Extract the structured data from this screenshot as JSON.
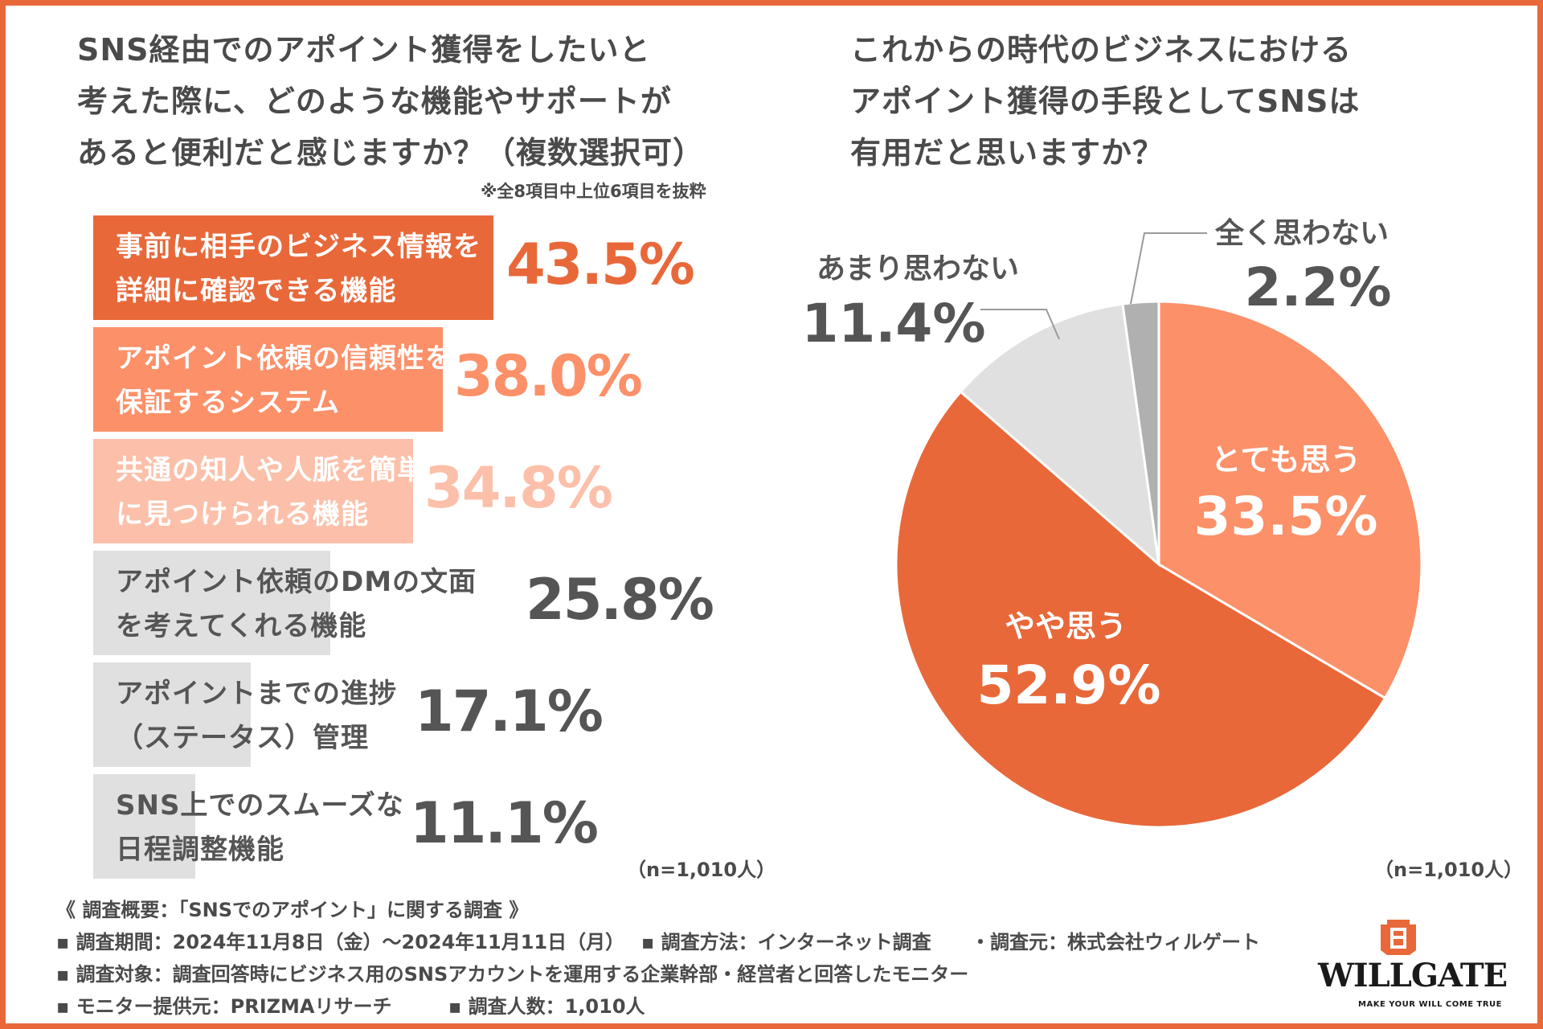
{
  "left_chart": {
    "title_lines": [
      "SNS経由でのアポイント獲得をしたいと",
      "考えた際に、どのような機能やサポートが",
      "あると便利だと感じますか？（複数選択可）"
    ],
    "note": "※全8項目中上位6項目を抜粋",
    "n_label": "（n=1,010人）"
  },
  "right_chart": {
    "title_lines": [
      "これからの時代のビジネスにおける",
      "アポイント獲得の手段としてSNSは",
      "有用だと思いますか？"
    ],
    "n_label": "（n=1,010人）"
  },
  "chart_data": [
    {
      "type": "bar",
      "orientation": "horizontal",
      "title": "SNS経由でのアポイント獲得をしたいと考えた際に、どのような機能やサポートがあると便利だと感じますか？（複数選択可）",
      "categories": [
        [
          "事前に相手のビジネス情報を",
          "詳細に確認できる機能"
        ],
        [
          "アポイント依頼の信頼性を",
          "保証するシステム"
        ],
        [
          "共通の知人や人脈を簡単",
          "に見つけられる機能"
        ],
        [
          "アポイント依頼のDMの文面",
          "を考えてくれる機能"
        ],
        [
          "アポイントまでの進捗",
          "（ステータス）管理"
        ],
        [
          "SNS上でのスムーズな",
          "日程調整機能"
        ]
      ],
      "values": [
        43.5,
        38.0,
        34.8,
        25.8,
        17.1,
        11.1
      ],
      "value_labels": [
        "43.5%",
        "38.0%",
        "34.8%",
        "25.8%",
        "17.1%",
        "11.1%"
      ],
      "unit": "%",
      "bar_colors": [
        "#e8683a",
        "#fc9069",
        "#fcc0aa",
        "#e0e0e0",
        "#e0e0e0",
        "#e0e0e0"
      ],
      "label_colors": [
        "#ffffff",
        "#ffffff",
        "#ffffff",
        "#555555",
        "#555555",
        "#555555"
      ],
      "value_colors": [
        "#e8683a",
        "#fc9069",
        "#fcc0aa",
        "#555555",
        "#555555",
        "#555555"
      ]
    },
    {
      "type": "pie",
      "title": "これからの時代のビジネスにおけるアポイント獲得の手段としてSNSは有用だと思いますか？",
      "slices": [
        {
          "label": "とても思う",
          "value": 33.5,
          "value_label": "33.5%",
          "color": "#fc9069",
          "text_color": "#ffffff"
        },
        {
          "label": "やや思う",
          "value": 52.9,
          "value_label": "52.9%",
          "color": "#e8683a",
          "text_color": "#ffffff"
        },
        {
          "label": "あまり思わない",
          "value": 11.4,
          "value_label": "11.4%",
          "color": "#e0e0e0",
          "text_color": "#555555"
        },
        {
          "label": "全く思わない",
          "value": 2.2,
          "value_label": "2.2%",
          "color": "#b0b0b0",
          "text_color": "#555555"
        }
      ]
    }
  ],
  "survey": {
    "heading": "《 調査概要：「SNSでのアポイント」に関する調査 》",
    "rows": [
      [
        "▪ 調査期間：2024年11月8日（金）〜2024年11月11日（月）",
        "▪ 調査方法：インターネット調査",
        "・調査元：株式会社ウィルゲート"
      ],
      [
        "▪ 調査対象：調査回答時にビジネス用のSNSアカウントを運用する企業幹部・経営者と回答したモニター"
      ],
      [
        "▪ モニター提供元：PRIZMAリサーチ",
        "▪ 調査人数：1,010人"
      ]
    ]
  },
  "logo": {
    "name": "WILLGATE",
    "tagline": "MAKE YOUR WILL COME TRUE",
    "color": "#e8683a"
  }
}
